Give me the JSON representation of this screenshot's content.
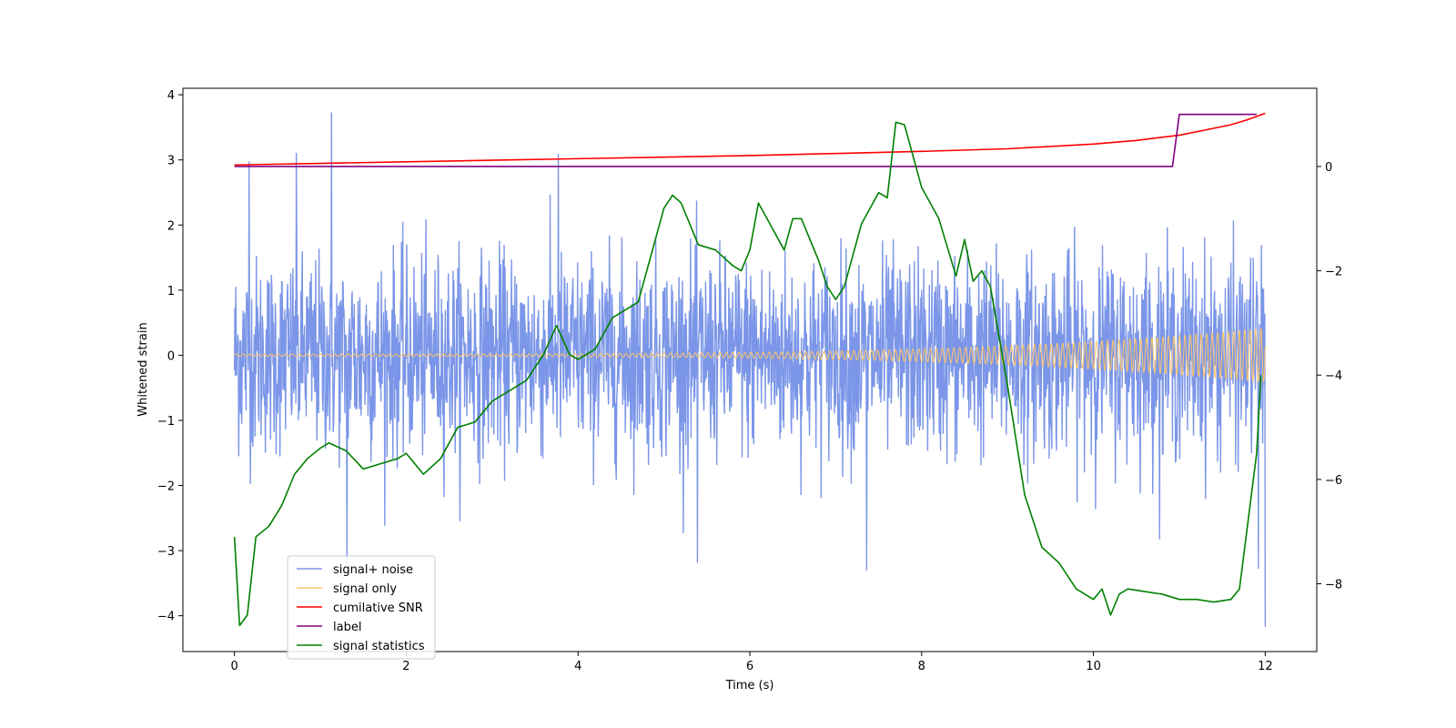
{
  "chart_data": {
    "type": "line",
    "title": "",
    "xlabel": "Time (s)",
    "ylabel": "Whitened strain",
    "y2label": "",
    "xlim": [
      -0.6,
      12.6
    ],
    "ylim": [
      -4.55,
      4.1
    ],
    "y2lim": [
      -9.3,
      1.5
    ],
    "xticks": [
      "0",
      "2",
      "4",
      "6",
      "8",
      "10",
      "12"
    ],
    "yticks": [
      "−4",
      "−3",
      "−2",
      "−1",
      "0",
      "1",
      "2",
      "3",
      "4"
    ],
    "y2ticks": [
      "−8",
      "−6",
      "−4",
      "−2",
      "0"
    ],
    "legend_position": "lower-left",
    "legend": [
      {
        "label": "signal+ noise",
        "color": "#7b96e8"
      },
      {
        "label": "signal only",
        "color": "#ffc56a"
      },
      {
        "label": "cumilative SNR",
        "color": "#ff0000"
      },
      {
        "label": "label",
        "color": "#800080"
      },
      {
        "label": "signal statistics",
        "color": "#008000"
      }
    ],
    "series": [
      {
        "name": "signal+ noise",
        "axis": "left",
        "color": "#7b96e8",
        "t_range": [
          0,
          12
        ],
        "std": 0.75,
        "noise_points": 2400,
        "peaks": [
          [
            1.13,
            3.72
          ],
          [
            0.72,
            3.1
          ],
          [
            3.77,
            3.08
          ],
          [
            0.17,
            2.97
          ],
          [
            11.92,
            -3.27
          ],
          [
            12.0,
            -4.17
          ],
          [
            7.36,
            -3.3
          ],
          [
            1.31,
            -3.2
          ],
          [
            5.39,
            -3.18
          ]
        ]
      },
      {
        "name": "signal only",
        "axis": "left",
        "color": "#ffc56a",
        "t_range": [
          0,
          12
        ],
        "start_amplitude": 0.02,
        "end_amplitude": 0.42,
        "start_frequency_hz": 12,
        "end_frequency_hz": 16
      },
      {
        "name": "cumilative SNR",
        "axis": "right",
        "color": "#ff0000",
        "x": [
          0,
          1,
          2,
          3,
          4,
          5,
          6,
          7,
          8,
          9,
          10,
          10.5,
          11,
          11.3,
          11.6,
          11.8,
          12
        ],
        "y": [
          0.03,
          0.06,
          0.09,
          0.12,
          0.15,
          0.18,
          0.21,
          0.25,
          0.29,
          0.34,
          0.43,
          0.5,
          0.6,
          0.7,
          0.8,
          0.9,
          1.02
        ]
      },
      {
        "name": "label",
        "axis": "right",
        "color": "#800080",
        "x": [
          0,
          10.92,
          11.0,
          11.9
        ],
        "y": [
          0,
          0,
          1,
          1
        ]
      },
      {
        "name": "signal statistics",
        "axis": "right",
        "color": "#008000",
        "x": [
          0,
          0.06,
          0.15,
          0.25,
          0.4,
          0.55,
          0.7,
          0.85,
          1.0,
          1.1,
          1.3,
          1.5,
          1.7,
          1.9,
          2.0,
          2.2,
          2.4,
          2.6,
          2.8,
          3.0,
          3.2,
          3.4,
          3.6,
          3.75,
          3.9,
          4.0,
          4.2,
          4.4,
          4.6,
          4.7,
          4.9,
          5.0,
          5.1,
          5.2,
          5.4,
          5.6,
          5.8,
          5.9,
          6.0,
          6.1,
          6.2,
          6.4,
          6.5,
          6.6,
          6.8,
          6.9,
          7.0,
          7.1,
          7.3,
          7.5,
          7.6,
          7.7,
          7.8,
          8.0,
          8.2,
          8.4,
          8.5,
          8.6,
          8.7,
          8.8,
          9.0,
          9.2,
          9.4,
          9.6,
          9.8,
          10.0,
          10.1,
          10.2,
          10.3,
          10.4,
          10.6,
          10.8,
          11.0,
          11.2,
          11.4,
          11.6,
          11.7,
          11.8,
          11.9,
          11.95
        ],
        "y": [
          -7.1,
          -8.8,
          -8.6,
          -7.1,
          -6.9,
          -6.5,
          -5.9,
          -5.6,
          -5.4,
          -5.3,
          -5.45,
          -5.8,
          -5.7,
          -5.6,
          -5.5,
          -5.9,
          -5.6,
          -5.0,
          -4.9,
          -4.5,
          -4.3,
          -4.1,
          -3.6,
          -3.05,
          -3.6,
          -3.7,
          -3.5,
          -2.9,
          -2.7,
          -2.6,
          -1.4,
          -0.8,
          -0.55,
          -0.7,
          -1.5,
          -1.6,
          -1.9,
          -2.0,
          -1.6,
          -0.7,
          -1.0,
          -1.6,
          -1.0,
          -1.0,
          -1.8,
          -2.3,
          -2.55,
          -2.3,
          -1.1,
          -0.5,
          -0.6,
          0.85,
          0.8,
          -0.4,
          -1.0,
          -2.1,
          -1.4,
          -2.2,
          -2.0,
          -2.3,
          -4.2,
          -6.3,
          -7.3,
          -7.6,
          -8.1,
          -8.3,
          -8.1,
          -8.6,
          -8.2,
          -8.1,
          -8.15,
          -8.2,
          -8.3,
          -8.3,
          -8.35,
          -8.3,
          -8.1,
          -6.8,
          -5.5,
          -4.0
        ]
      }
    ]
  }
}
